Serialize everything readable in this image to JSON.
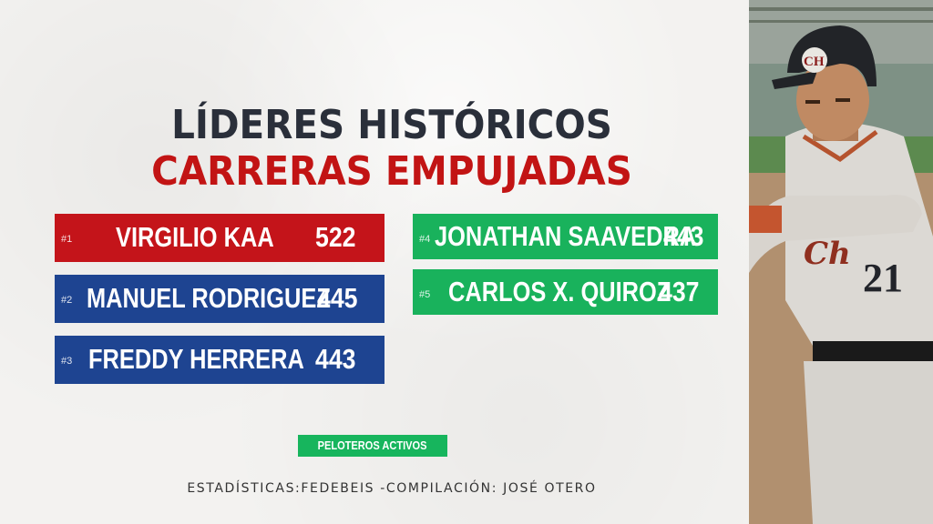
{
  "title": {
    "line1": "LÍDERES HISTÓRICOS",
    "line2": "CARRERAS EMPUJADAS"
  },
  "leaders": [
    {
      "rank": "#1",
      "name": "VIRGILIO KAA",
      "value": "522",
      "color": "#c4141a"
    },
    {
      "rank": "#2",
      "name": "MANUEL RODRIGUEZ",
      "value": "445",
      "color": "#1e4491"
    },
    {
      "rank": "#3",
      "name": "FREDDY HERRERA",
      "value": "443",
      "color": "#1e4491"
    },
    {
      "rank": "#4",
      "name": "JONATHAN SAAVEDRA",
      "value": "443",
      "color": "#19b25c"
    },
    {
      "rank": "#5",
      "name": "CARLOS X. QUIROZ",
      "value": "437",
      "color": "#19b25c"
    }
  ],
  "badge": {
    "label": "PELOTEROS ACTIVOS",
    "color": "#17b55d"
  },
  "footer": "ESTADÍSTICAS:FEDEBEIS -COMPILACIÓN: JOSÉ OTERO",
  "photo": {
    "helmet_logo": "CH",
    "jersey_number": "21",
    "jersey_script": "Ch"
  }
}
